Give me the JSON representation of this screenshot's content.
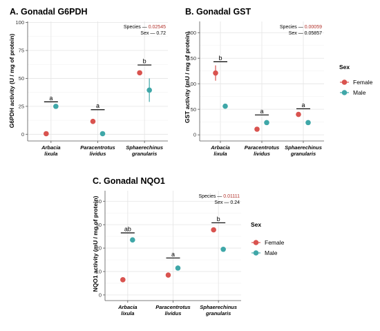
{
  "colors": {
    "female": "#d9534f",
    "male": "#3fa7a8",
    "pvalue": "#b2312a"
  },
  "legend": {
    "title": "Sex",
    "items": [
      {
        "label": "Female",
        "color": "#d9534f"
      },
      {
        "label": "Male",
        "color": "#3fa7a8"
      }
    ]
  },
  "chart_data": [
    {
      "type": "scatter",
      "title": "A. Gonadal G6PDH",
      "ylabel": "G6PDH activity (U / mg  of protein)",
      "ylim": [
        -6,
        101
      ],
      "yticks": [
        0,
        25,
        50,
        75,
        100
      ],
      "categories": [
        {
          "line1": "Arbacia",
          "line2": "lixula"
        },
        {
          "line1": "Paracentrotus",
          "line2": "lividus"
        },
        {
          "line1": "Sphaerechinus",
          "line2": "granularis"
        }
      ],
      "series": [
        {
          "name": "Female",
          "values": [
            0.5,
            11.5,
            55
          ],
          "errors": [
            0,
            0,
            0
          ]
        },
        {
          "name": "Male",
          "values": [
            25,
            0.5,
            39.5
          ],
          "errors": [
            0,
            0,
            10.5
          ]
        }
      ],
      "significance": [
        {
          "label": "a",
          "y": 29
        },
        {
          "label": "a",
          "y": 22
        },
        {
          "label": "b",
          "y": 62
        }
      ],
      "annotation": {
        "species_label": "Species — ",
        "species_p": "0.02545",
        "sex_label": "Sex — 0.72"
      },
      "grid": true
    },
    {
      "type": "scatter",
      "title": "B. Gonadal GST",
      "ylabel": "GST activity (mU / mg  of protein)",
      "ylim": [
        -12,
        222
      ],
      "yticks": [
        0,
        50,
        100,
        150,
        200
      ],
      "categories": [
        {
          "line1": "Arbacia",
          "line2": "lixula"
        },
        {
          "line1": "Paracentrotus",
          "line2": "lividus"
        },
        {
          "line1": "Sphaerechinus",
          "line2": "granularis"
        }
      ],
      "series": [
        {
          "name": "Female",
          "values": [
            121,
            11,
            40
          ],
          "errors": [
            15,
            0,
            0
          ]
        },
        {
          "name": "Male",
          "values": [
            56,
            24,
            24
          ],
          "errors": [
            0,
            0,
            0
          ]
        }
      ],
      "significance": [
        {
          "label": "b",
          "y": 143
        },
        {
          "label": "a",
          "y": 39
        },
        {
          "label": "a",
          "y": 51
        }
      ],
      "annotation": {
        "species_label": "Species — ",
        "species_p": "0.00059",
        "sex_label": "Sex — 0.05857"
      },
      "grid": true
    },
    {
      "type": "scatter",
      "title": "C. Gonadal NQO1",
      "ylabel": "NQO1 activity (mU / mg  of protein)",
      "ylim": [
        -2.4,
        44.5
      ],
      "yticks": [
        0,
        10,
        20,
        30,
        40
      ],
      "categories": [
        {
          "line1": "Arbacia",
          "line2": "lixula"
        },
        {
          "line1": "Paracentrotus",
          "line2": "lividus"
        },
        {
          "line1": "Sphaerechinus",
          "line2": "granularis"
        }
      ],
      "series": [
        {
          "name": "Female",
          "values": [
            6.5,
            8.5,
            27.8
          ],
          "errors": [
            0,
            0.8,
            0
          ]
        },
        {
          "name": "Male",
          "values": [
            23.5,
            11.5,
            19.5
          ],
          "errors": [
            0,
            0,
            1
          ]
        }
      ],
      "significance": [
        {
          "label": "ab",
          "y": 26.5
        },
        {
          "label": "a",
          "y": 15.8
        },
        {
          "label": "b",
          "y": 30.8
        }
      ],
      "annotation": {
        "species_label": "Species — ",
        "species_p": "0.01111",
        "sex_label": "Sex — 0.24"
      },
      "grid": true
    }
  ]
}
